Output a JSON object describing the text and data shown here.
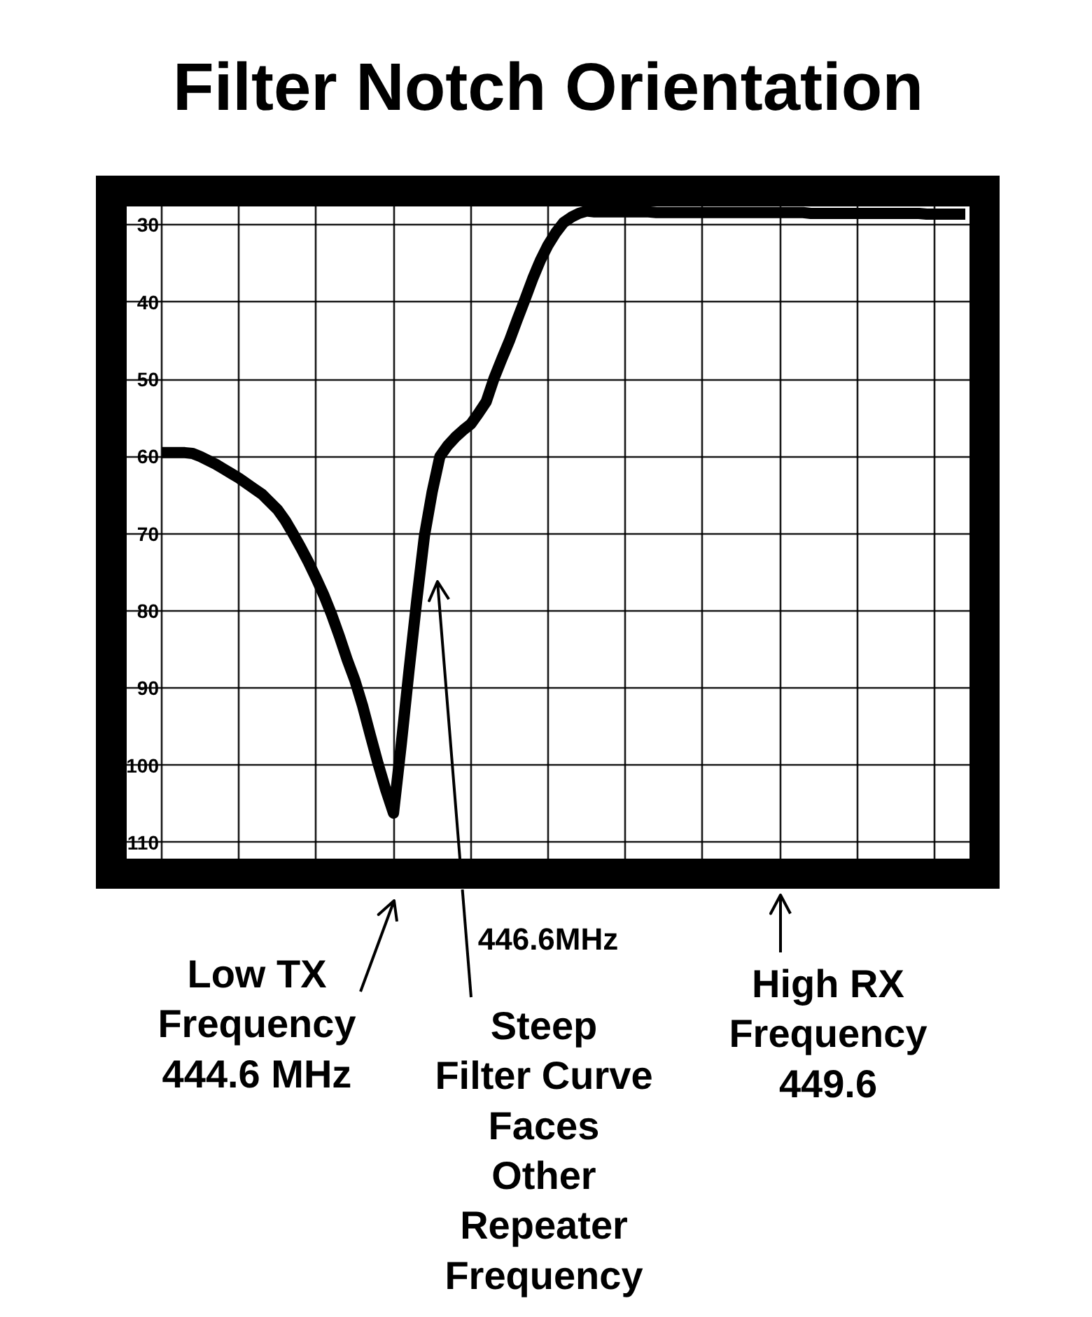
{
  "chart_data": {
    "type": "line",
    "title": "Filter Notch Orientation",
    "categories": [
      null,
      null,
      null,
      null,
      null,
      null,
      null,
      null,
      null,
      null,
      null,
      null,
      null,
      null,
      null,
      null,
      null,
      null,
      null,
      null,
      null,
      null,
      null,
      null,
      null,
      null,
      null,
      null,
      null,
      null,
      null,
      null,
      null,
      null,
      null,
      null,
      null,
      null,
      null,
      null,
      null,
      null,
      null,
      null,
      null,
      null,
      null,
      null,
      null,
      null,
      null,
      null,
      null,
      null,
      null,
      null,
      null,
      null,
      null,
      null,
      null,
      null,
      null,
      null,
      null,
      null,
      null,
      null,
      null,
      null,
      null,
      null,
      null,
      null,
      null,
      null,
      null,
      null,
      null,
      null,
      null,
      null,
      null,
      null,
      null,
      null,
      null,
      null,
      null,
      null,
      null,
      null,
      null,
      null,
      null,
      null,
      null,
      null,
      null,
      null,
      null,
      null,
      null,
      null,
      null
    ],
    "series": [
      {
        "color": "#000000",
        "values": [
          59.5,
          59.5,
          59.5,
          59.5,
          59.6,
          60.0,
          60.5,
          61.0,
          61.6,
          62.2,
          62.8,
          63.5,
          64.2,
          64.9,
          65.9,
          66.9,
          68.3,
          70.0,
          71.8,
          73.7,
          75.8,
          78.0,
          80.5,
          83.3,
          86.3,
          89.0,
          92.3,
          96.1,
          99.8,
          103.2,
          106.2,
          97.3,
          87.8,
          78.7,
          70.3,
          64.6,
          60.0,
          58.6,
          57.5,
          56.6,
          55.8,
          54.4,
          52.9,
          49.9,
          47.4,
          45.0,
          42.3,
          39.7,
          37.0,
          34.6,
          32.6,
          31.0,
          29.7,
          29.0,
          28.5,
          28.2,
          28.3,
          28.3,
          28.3,
          28.3,
          28.3,
          28.3,
          28.3,
          28.3,
          28.4,
          28.4,
          28.4,
          28.4,
          28.4,
          28.4,
          28.4,
          28.4,
          28.4,
          28.4,
          28.4,
          28.4,
          28.4,
          28.4,
          28.4,
          28.4,
          28.4,
          28.4,
          28.4,
          28.4,
          28.5,
          28.5,
          28.5,
          28.5,
          28.5,
          28.5,
          28.5,
          28.5,
          28.5,
          28.5,
          28.5,
          28.5,
          28.5,
          28.5,
          28.5,
          28.6,
          28.6,
          28.6,
          28.6,
          28.6,
          28.6
        ]
      }
    ],
    "ylim": [
      112.1,
      27.6
    ],
    "yticks": [
      30,
      40,
      50,
      60,
      70,
      80,
      90,
      100,
      110
    ],
    "grid": true,
    "line_style": "solid",
    "annotations": [
      "446.6MHz",
      "Low TX\nFrequency\n444.6 MHz",
      "Steep\nFilter Curve\nFaces\nOther\nRepeater\nFrequency",
      "High RX\nFrequency\n449.6"
    ]
  }
}
